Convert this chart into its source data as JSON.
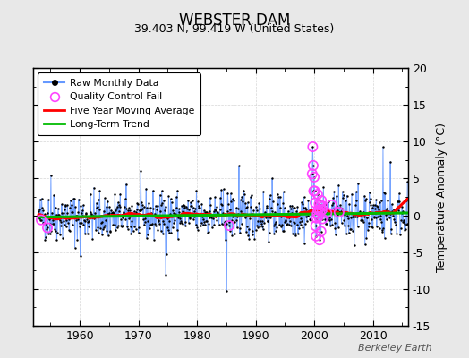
{
  "title": "WEBSTER DAM",
  "subtitle": "39.403 N, 99.419 W (United States)",
  "ylabel_right": "Temperature Anomaly (°C)",
  "watermark": "Berkeley Earth",
  "xlim": [
    1952,
    2016
  ],
  "ylim": [
    -15,
    20
  ],
  "yticks": [
    -15,
    -10,
    -5,
    0,
    5,
    10,
    15,
    20
  ],
  "xticks": [
    1960,
    1970,
    1980,
    1990,
    2000,
    2010
  ],
  "fig_bg_color": "#e8e8e8",
  "plot_bg_color": "#ffffff",
  "raw_line_color": "#6699ff",
  "raw_marker_color": "#000000",
  "qc_color": "#ff44ff",
  "moving_avg_color": "#ff0000",
  "trend_color": "#00bb00",
  "trend_intercept": -0.25,
  "trend_slope": 0.009,
  "moving_avg_window": 60,
  "seed": 42,
  "n_raw": 756,
  "start_year": 1953.0,
  "end_year": 2015.9,
  "qc_fail_indices_early": [
    5,
    18
  ],
  "qc_fail_indices_late": [
    560,
    561,
    562,
    563,
    564,
    565,
    566,
    567,
    568,
    569,
    570,
    571,
    572,
    573,
    574,
    575,
    576,
    577,
    578,
    579,
    580,
    581,
    582,
    590,
    600,
    615
  ],
  "qc_fail_index_mid": [
    390
  ]
}
